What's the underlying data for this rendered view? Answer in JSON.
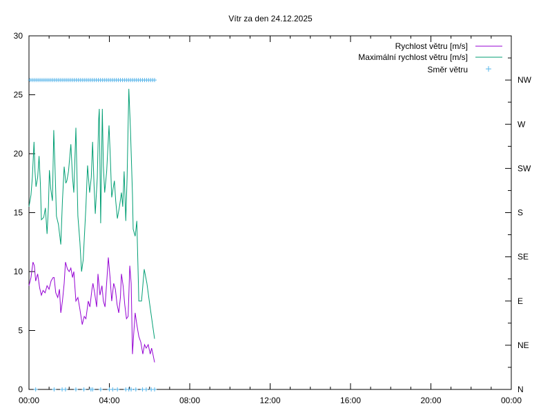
{
  "chart_data": {
    "type": "line",
    "title": "Vítr za den 24.12.2025",
    "x_range": [
      "00:00",
      "24:00"
    ],
    "x_ticks": [
      "00:00",
      "04:00",
      "08:00",
      "12:00",
      "16:00",
      "20:00",
      "00:00"
    ],
    "y_range": [
      0,
      30
    ],
    "y_ticks": [
      "0",
      "5",
      "10",
      "15",
      "20",
      "25",
      "30"
    ],
    "y2_range": [
      0,
      360
    ],
    "y2_ticks": [
      "N",
      "NE",
      "E",
      "SE",
      "S",
      "SW",
      "W",
      "NW"
    ],
    "grid": false,
    "legend_position": "top-right",
    "colors": {
      "speed": "#9400d3",
      "max": "#009e73",
      "direction": "#56b4e9"
    },
    "series": [
      {
        "name": "Rychlost větru [m/s]",
        "style": "line",
        "axis": "y",
        "points": [
          [
            "00:00",
            8.8
          ],
          [
            "00:06",
            9.5
          ],
          [
            "00:12",
            10.8
          ],
          [
            "00:16",
            10.5
          ],
          [
            "00:20",
            9.2
          ],
          [
            "00:26",
            9.8
          ],
          [
            "00:32",
            8.6
          ],
          [
            "00:37",
            8.0
          ],
          [
            "00:42",
            8.4
          ],
          [
            "00:48",
            8.2
          ],
          [
            "00:54",
            8.8
          ],
          [
            "01:00",
            8.5
          ],
          [
            "01:06",
            9.2
          ],
          [
            "01:12",
            9.5
          ],
          [
            "01:15",
            9.5
          ],
          [
            "01:20",
            8.2
          ],
          [
            "01:26",
            7.8
          ],
          [
            "01:31",
            8.5
          ],
          [
            "01:35",
            6.5
          ],
          [
            "01:40",
            7.5
          ],
          [
            "01:45",
            9.0
          ],
          [
            "01:49",
            10.8
          ],
          [
            "01:55",
            10.2
          ],
          [
            "02:00",
            10.0
          ],
          [
            "02:05",
            10.3
          ],
          [
            "02:10",
            9.5
          ],
          [
            "02:14",
            10.0
          ],
          [
            "02:20",
            7.5
          ],
          [
            "02:26",
            7.8
          ],
          [
            "02:32",
            6.8
          ],
          [
            "02:39",
            5.5
          ],
          [
            "02:45",
            6.2
          ],
          [
            "02:50",
            6.0
          ],
          [
            "02:57",
            7.5
          ],
          [
            "03:02",
            7.0
          ],
          [
            "03:08",
            8.5
          ],
          [
            "03:11",
            9.0
          ],
          [
            "03:16",
            8.2
          ],
          [
            "03:22",
            7.0
          ],
          [
            "03:26",
            9.8
          ],
          [
            "03:32",
            8.0
          ],
          [
            "03:38",
            8.8
          ],
          [
            "03:42",
            7.5
          ],
          [
            "03:47",
            7.0
          ],
          [
            "03:53",
            9.5
          ],
          [
            "03:57",
            11.2
          ],
          [
            "04:02",
            9.5
          ],
          [
            "04:07",
            7.5
          ],
          [
            "04:13",
            9.0
          ],
          [
            "04:18",
            8.5
          ],
          [
            "04:23",
            7.2
          ],
          [
            "04:28",
            6.5
          ],
          [
            "04:33",
            7.8
          ],
          [
            "04:36",
            9.8
          ],
          [
            "04:41",
            8.8
          ],
          [
            "04:46",
            7.2
          ],
          [
            "04:51",
            6.0
          ],
          [
            "04:56",
            6.2
          ],
          [
            "05:01",
            10.5
          ],
          [
            "05:05",
            9.0
          ],
          [
            "05:09",
            3.0
          ],
          [
            "05:12",
            4.5
          ],
          [
            "05:17",
            6.5
          ],
          [
            "05:22",
            5.5
          ],
          [
            "05:28",
            4.5
          ],
          [
            "05:34",
            4.0
          ],
          [
            "05:40",
            3.0
          ],
          [
            "05:45",
            3.8
          ],
          [
            "05:50",
            3.5
          ],
          [
            "05:56",
            3.8
          ],
          [
            "06:02",
            3.0
          ],
          [
            "06:06",
            3.5
          ],
          [
            "06:10",
            3.0
          ],
          [
            "06:15",
            2.3
          ]
        ]
      },
      {
        "name": "Maximální rychlost větru [m/s]",
        "style": "line",
        "axis": "y",
        "points": [
          [
            "00:00",
            15.5
          ],
          [
            "00:06",
            16.5
          ],
          [
            "00:10",
            18.0
          ],
          [
            "00:15",
            21.0
          ],
          [
            "00:18",
            18.5
          ],
          [
            "00:21",
            17.2
          ],
          [
            "00:26",
            18.0
          ],
          [
            "00:30",
            19.8
          ],
          [
            "00:34",
            17.5
          ],
          [
            "00:37",
            14.4
          ],
          [
            "00:44",
            14.6
          ],
          [
            "00:49",
            15.4
          ],
          [
            "00:54",
            13.2
          ],
          [
            "00:58",
            15.5
          ],
          [
            "01:01",
            18.6
          ],
          [
            "01:05",
            17.0
          ],
          [
            "01:10",
            16.0
          ],
          [
            "01:14",
            22.0
          ],
          [
            "01:18",
            18.5
          ],
          [
            "01:22",
            14.7
          ],
          [
            "01:28",
            14.0
          ],
          [
            "01:35",
            12.3
          ],
          [
            "01:40",
            16.0
          ],
          [
            "01:45",
            18.9
          ],
          [
            "01:50",
            17.5
          ],
          [
            "01:53",
            17.7
          ],
          [
            "01:58",
            18.5
          ],
          [
            "02:05",
            20.8
          ],
          [
            "02:10",
            18.0
          ],
          [
            "02:14",
            16.7
          ],
          [
            "02:20",
            22.2
          ],
          [
            "02:26",
            14.7
          ],
          [
            "02:32",
            12.5
          ],
          [
            "02:37",
            10.0
          ],
          [
            "02:42",
            11.0
          ],
          [
            "02:50",
            15.5
          ],
          [
            "02:55",
            19.0
          ],
          [
            "03:01",
            16.7
          ],
          [
            "03:06",
            18.0
          ],
          [
            "03:10",
            21.0
          ],
          [
            "03:14",
            17.5
          ],
          [
            "03:18",
            14.9
          ],
          [
            "03:24",
            18.0
          ],
          [
            "03:28",
            22.9
          ],
          [
            "03:30",
            23.8
          ],
          [
            "03:34",
            14.1
          ],
          [
            "03:39",
            23.8
          ],
          [
            "03:42",
            19.0
          ],
          [
            "03:46",
            16.7
          ],
          [
            "03:52",
            18.5
          ],
          [
            "03:59",
            22.4
          ],
          [
            "04:03",
            19.5
          ],
          [
            "04:07",
            16.3
          ],
          [
            "04:11",
            17.0
          ],
          [
            "04:15",
            17.7
          ],
          [
            "04:19",
            16.0
          ],
          [
            "04:24",
            14.5
          ],
          [
            "04:30",
            15.5
          ],
          [
            "04:36",
            16.7
          ],
          [
            "04:40",
            15.5
          ],
          [
            "04:44",
            18.5
          ],
          [
            "04:49",
            14.3
          ],
          [
            "04:53",
            18.0
          ],
          [
            "04:58",
            25.5
          ],
          [
            "05:03",
            22.0
          ],
          [
            "05:09",
            16.5
          ],
          [
            "05:11",
            13.6
          ],
          [
            "05:17",
            13.0
          ],
          [
            "05:22",
            14.3
          ],
          [
            "05:28",
            7.5
          ],
          [
            "05:36",
            7.5
          ],
          [
            "05:44",
            10.2
          ],
          [
            "05:52",
            9.0
          ],
          [
            "06:00",
            7.3
          ],
          [
            "06:09",
            5.5
          ],
          [
            "06:15",
            4.3
          ]
        ]
      },
      {
        "name": "Směr větru",
        "style": "points",
        "axis": "y2",
        "points": [
          [
            "00:03",
            315
          ],
          [
            "00:09",
            315
          ],
          [
            "00:15",
            315
          ],
          [
            "00:20",
            0
          ],
          [
            "00:21",
            315
          ],
          [
            "00:27",
            315
          ],
          [
            "00:33",
            315
          ],
          [
            "00:39",
            315
          ],
          [
            "00:45",
            315
          ],
          [
            "00:51",
            315
          ],
          [
            "00:57",
            315
          ],
          [
            "01:03",
            315
          ],
          [
            "01:09",
            315
          ],
          [
            "01:15",
            0
          ],
          [
            "01:15",
            315
          ],
          [
            "01:21",
            315
          ],
          [
            "01:27",
            315
          ],
          [
            "01:33",
            315
          ],
          [
            "01:39",
            0
          ],
          [
            "01:39",
            315
          ],
          [
            "01:45",
            315
          ],
          [
            "01:49",
            0
          ],
          [
            "01:51",
            315
          ],
          [
            "01:57",
            315
          ],
          [
            "02:03",
            315
          ],
          [
            "02:09",
            315
          ],
          [
            "02:15",
            315
          ],
          [
            "02:20",
            0
          ],
          [
            "02:21",
            315
          ],
          [
            "02:27",
            315
          ],
          [
            "02:33",
            315
          ],
          [
            "02:39",
            315
          ],
          [
            "02:44",
            0
          ],
          [
            "02:45",
            315
          ],
          [
            "02:51",
            315
          ],
          [
            "02:57",
            315
          ],
          [
            "03:03",
            315
          ],
          [
            "03:05",
            0
          ],
          [
            "03:09",
            315
          ],
          [
            "03:10",
            0
          ],
          [
            "03:15",
            315
          ],
          [
            "03:21",
            315
          ],
          [
            "03:27",
            315
          ],
          [
            "03:33",
            315
          ],
          [
            "03:34",
            0
          ],
          [
            "03:39",
            315
          ],
          [
            "03:45",
            315
          ],
          [
            "03:51",
            315
          ],
          [
            "03:57",
            315
          ],
          [
            "04:00",
            0
          ],
          [
            "04:03",
            315
          ],
          [
            "04:09",
            315
          ],
          [
            "04:10",
            0
          ],
          [
            "04:15",
            315
          ],
          [
            "04:21",
            315
          ],
          [
            "04:24",
            0
          ],
          [
            "04:27",
            315
          ],
          [
            "04:33",
            315
          ],
          [
            "04:39",
            315
          ],
          [
            "04:45",
            315
          ],
          [
            "04:49",
            0
          ],
          [
            "04:51",
            315
          ],
          [
            "04:57",
            315
          ],
          [
            "04:58",
            0
          ],
          [
            "05:03",
            315
          ],
          [
            "05:05",
            0
          ],
          [
            "05:09",
            315
          ],
          [
            "05:15",
            315
          ],
          [
            "05:19",
            0
          ],
          [
            "05:21",
            315
          ],
          [
            "05:27",
            315
          ],
          [
            "05:33",
            315
          ],
          [
            "05:39",
            0
          ],
          [
            "05:39",
            315
          ],
          [
            "05:45",
            315
          ],
          [
            "05:50",
            0
          ],
          [
            "05:51",
            315
          ],
          [
            "05:57",
            315
          ],
          [
            "06:03",
            315
          ],
          [
            "06:05",
            0
          ],
          [
            "06:09",
            315
          ],
          [
            "06:15",
            0
          ],
          [
            "06:15",
            315
          ]
        ]
      }
    ]
  }
}
